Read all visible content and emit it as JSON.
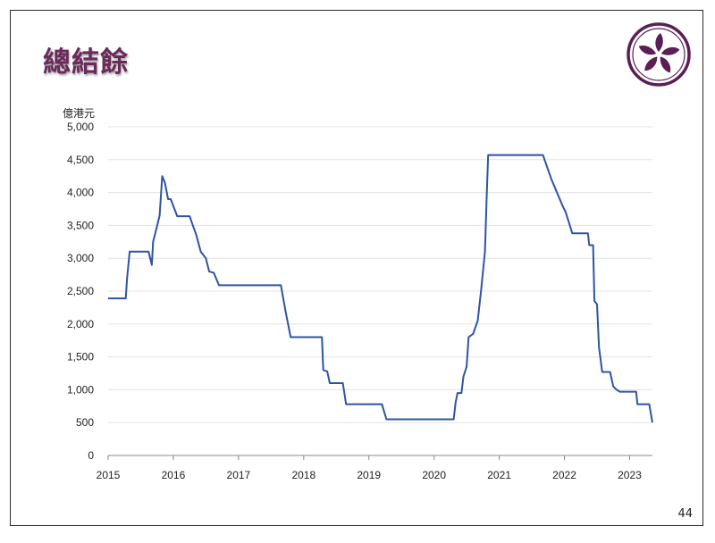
{
  "slide": {
    "title": "總結餘",
    "page_number": "44"
  },
  "logo": {
    "icon": "bauhinia-emblem-icon",
    "colors": {
      "ring": "#5b1f55",
      "background": "#ffffff"
    }
  },
  "chart_data": {
    "type": "line",
    "title": "總結餘",
    "ylabel": "億港元",
    "xlabel": "",
    "ylim": [
      0,
      5000
    ],
    "xlim": [
      2015,
      2023.35
    ],
    "yticks": [
      0,
      500,
      1000,
      1500,
      2000,
      2500,
      3000,
      3500,
      4000,
      4500,
      5000
    ],
    "ytick_labels": [
      "0",
      "500",
      "1,000",
      "1,500",
      "2,000",
      "2,500",
      "3,000",
      "3,500",
      "4,000",
      "4,500",
      "5,000"
    ],
    "xticks": [
      2015,
      2016,
      2017,
      2018,
      2019,
      2020,
      2021,
      2022,
      2023
    ],
    "xtick_labels": [
      "2015",
      "2016",
      "2017",
      "2018",
      "2019",
      "2020",
      "2021",
      "2022",
      "2023"
    ],
    "grid": "horizontal",
    "legend": "none",
    "series": [
      {
        "color": "#2e54a3",
        "points": [
          [
            2015.0,
            2390
          ],
          [
            2015.27,
            2390
          ],
          [
            2015.29,
            2700
          ],
          [
            2015.33,
            3100
          ],
          [
            2015.62,
            3100
          ],
          [
            2015.67,
            2900
          ],
          [
            2015.69,
            3250
          ],
          [
            2015.74,
            3450
          ],
          [
            2015.79,
            3650
          ],
          [
            2015.83,
            4250
          ],
          [
            2015.87,
            4150
          ],
          [
            2015.92,
            3900
          ],
          [
            2015.96,
            3900
          ],
          [
            2016.06,
            3640
          ],
          [
            2016.25,
            3640
          ],
          [
            2016.3,
            3500
          ],
          [
            2016.35,
            3360
          ],
          [
            2016.42,
            3100
          ],
          [
            2016.5,
            3000
          ],
          [
            2016.55,
            2800
          ],
          [
            2016.62,
            2780
          ],
          [
            2016.7,
            2590
          ],
          [
            2017.65,
            2590
          ],
          [
            2017.72,
            2200
          ],
          [
            2017.8,
            1800
          ],
          [
            2018.28,
            1800
          ],
          [
            2018.3,
            1300
          ],
          [
            2018.36,
            1280
          ],
          [
            2018.4,
            1100
          ],
          [
            2018.6,
            1100
          ],
          [
            2018.65,
            780
          ],
          [
            2019.2,
            780
          ],
          [
            2019.27,
            550
          ],
          [
            2020.3,
            550
          ],
          [
            2020.33,
            800
          ],
          [
            2020.36,
            950
          ],
          [
            2020.42,
            950
          ],
          [
            2020.45,
            1200
          ],
          [
            2020.5,
            1350
          ],
          [
            2020.53,
            1800
          ],
          [
            2020.6,
            1850
          ],
          [
            2020.67,
            2050
          ],
          [
            2020.72,
            2500
          ],
          [
            2020.78,
            3100
          ],
          [
            2020.81,
            4000
          ],
          [
            2020.83,
            4570
          ],
          [
            2021.67,
            4570
          ],
          [
            2021.8,
            4200
          ],
          [
            2021.97,
            3800
          ],
          [
            2022.02,
            3700
          ],
          [
            2022.12,
            3380
          ],
          [
            2022.36,
            3380
          ],
          [
            2022.38,
            3200
          ],
          [
            2022.44,
            3200
          ],
          [
            2022.46,
            2350
          ],
          [
            2022.5,
            2300
          ],
          [
            2022.53,
            1650
          ],
          [
            2022.58,
            1270
          ],
          [
            2022.7,
            1270
          ],
          [
            2022.75,
            1050
          ],
          [
            2022.8,
            1000
          ],
          [
            2022.85,
            970
          ],
          [
            2023.1,
            970
          ],
          [
            2023.12,
            780
          ],
          [
            2023.3,
            780
          ],
          [
            2023.35,
            500
          ]
        ]
      }
    ]
  }
}
